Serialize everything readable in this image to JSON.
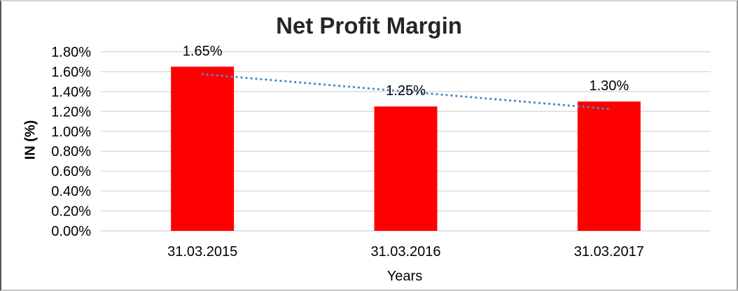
{
  "chart_data": {
    "type": "bar",
    "title": "Net Profit Margin",
    "xlabel": "Years",
    "ylabel": "IN (%)",
    "categories": [
      "31.03.2015",
      "31.03.2016",
      "31.03.2017"
    ],
    "series": [
      {
        "name": "Net Profit Margin",
        "values": [
          1.65,
          1.25,
          1.3
        ]
      }
    ],
    "data_labels": [
      "1.65%",
      "1.25%",
      "1.30%"
    ],
    "ylim": [
      0,
      1.8
    ],
    "ytick_step": 0.2,
    "ytick_labels": [
      "0.00%",
      "0.20%",
      "0.40%",
      "0.60%",
      "0.80%",
      "1.00%",
      "1.20%",
      "1.40%",
      "1.60%",
      "1.80%"
    ],
    "legend": "none",
    "grid": "horizontal",
    "bar_color": "#FF0000",
    "gridline_color": "#D9D9D9",
    "text_color": "#000000",
    "title_color": "#262626",
    "trendline": {
      "type": "linear",
      "style": "dotted",
      "color": "#4E8AC8"
    }
  }
}
